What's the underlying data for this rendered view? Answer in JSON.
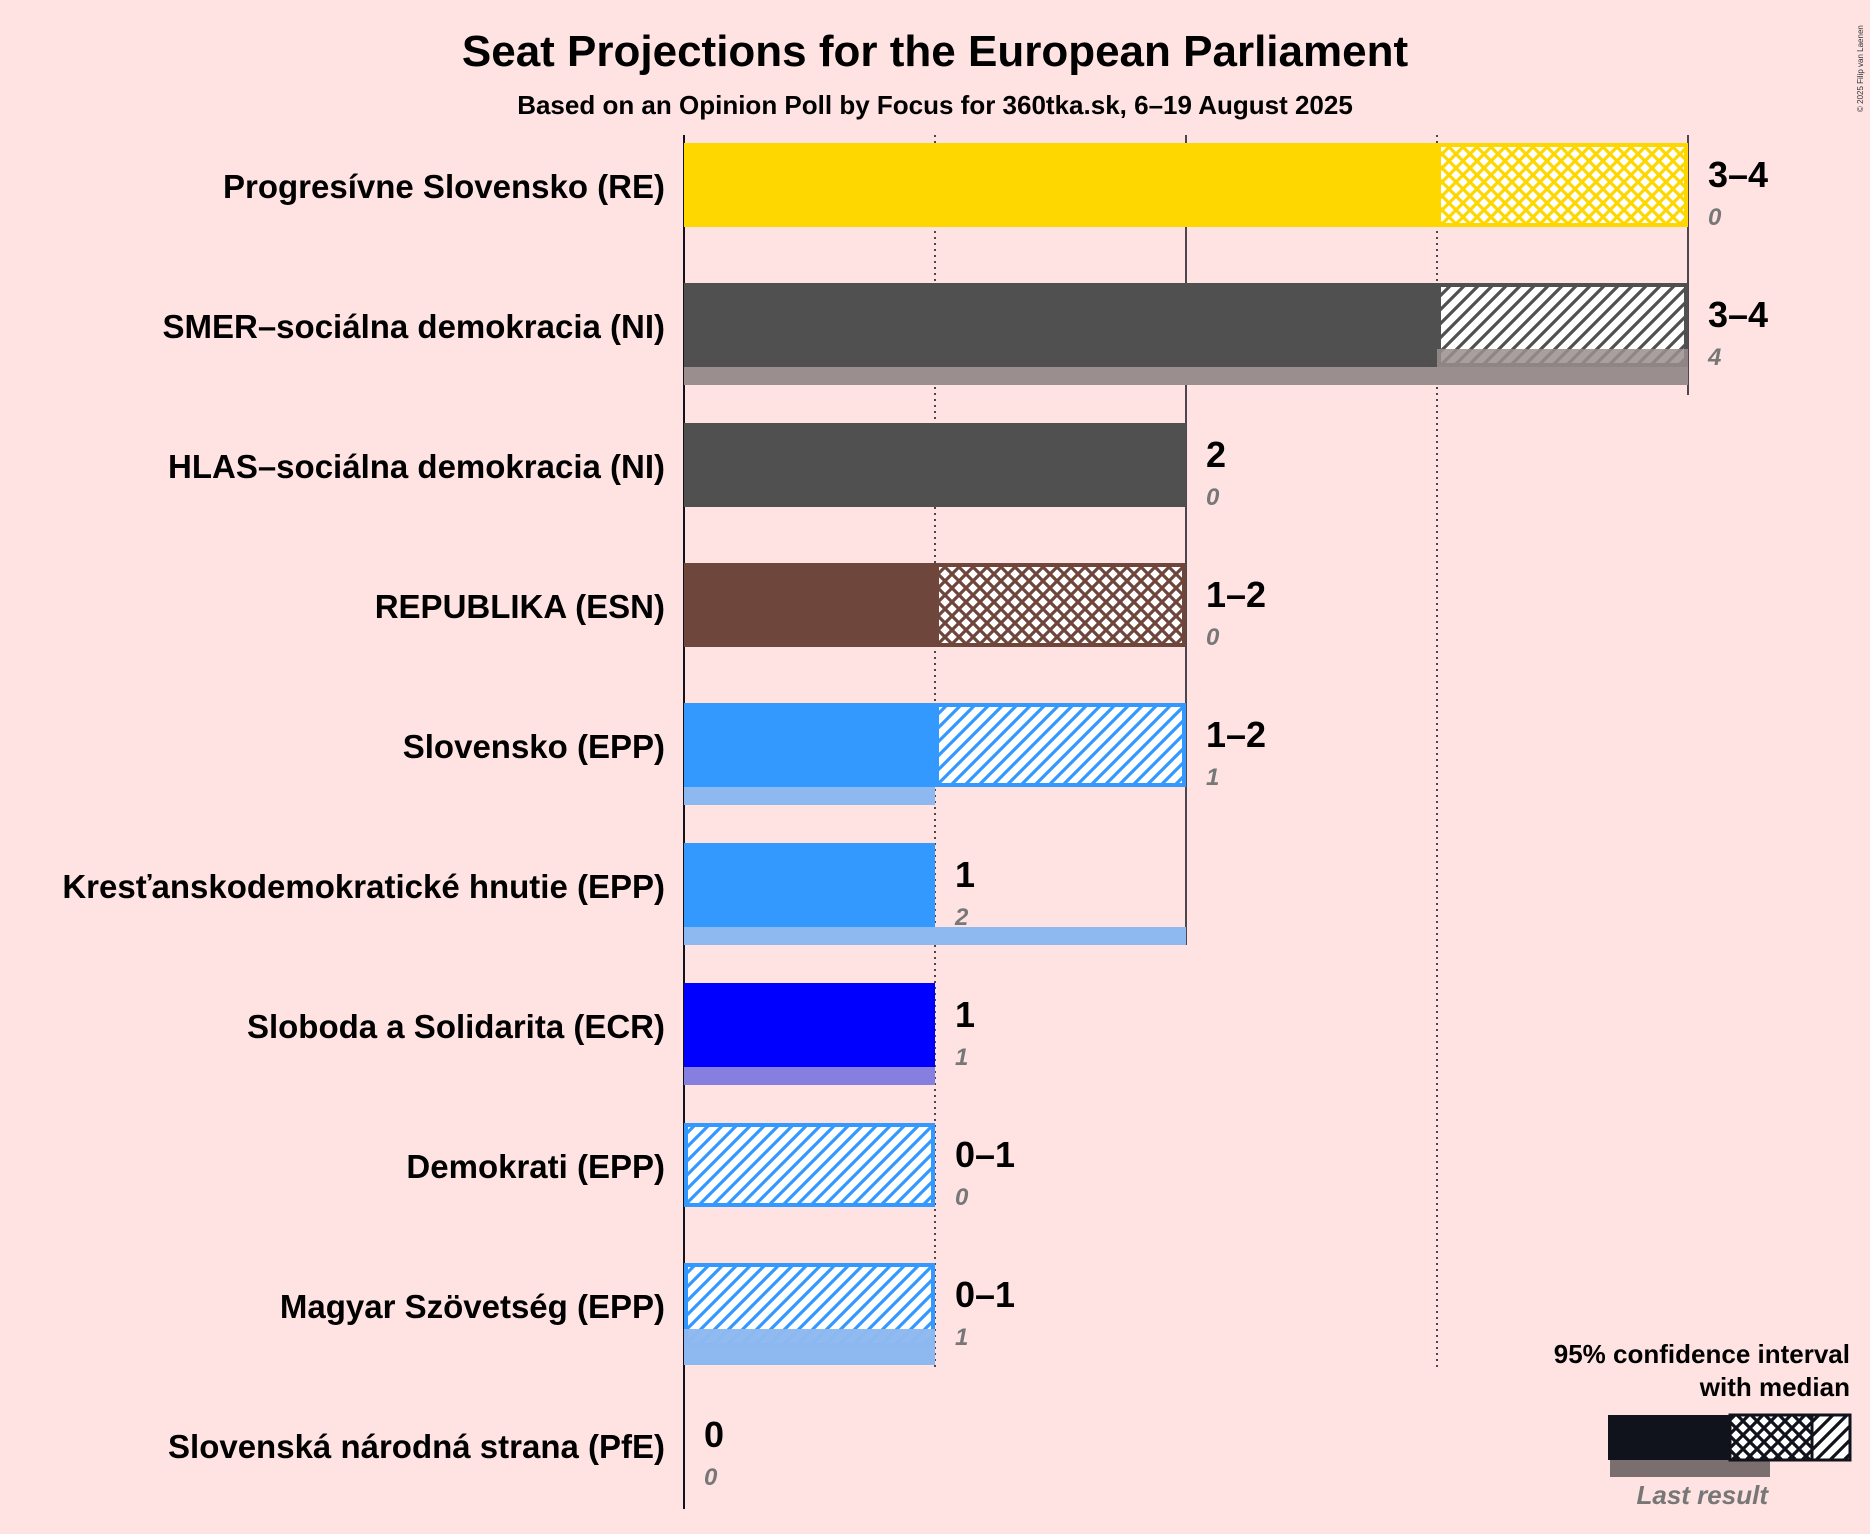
{
  "title": "Seat Projections for the European Parliament",
  "subtitle": "Based on an Opinion Poll by Focus for 360tka.sk, 6–19 August 2025",
  "copyright": "© 2025 Filip van Laenen",
  "legend": {
    "line1": "95% confidence interval",
    "line2": "with median",
    "last_result": "Last result"
  },
  "chart_data": {
    "type": "bar",
    "orientation": "horizontal",
    "title": "Seat Projections for the European Parliament",
    "subtitle": "Based on an Opinion Poll by Focus for 360tka.sk, 6–19 August 2025",
    "xlim": [
      0,
      4
    ],
    "gridlines_solid": [
      0,
      2,
      4
    ],
    "gridlines_dotted": [
      1,
      3
    ],
    "parties": [
      {
        "name": "Progresívne Slovensko (RE)",
        "low": 3,
        "median": 3,
        "high": 4,
        "last": 0,
        "label": "3–4",
        "last_label": "0",
        "color": "#FFD700",
        "last_color": "#F4C87E",
        "pattern": "cross"
      },
      {
        "name": "SMER–sociálna demokracia (NI)",
        "low": 3,
        "median": 3,
        "high": 4,
        "last": 4,
        "label": "3–4",
        "last_label": "4",
        "color": "#505050",
        "last_color": "#9A8E8E",
        "pattern": "diag"
      },
      {
        "name": "HLAS–sociálna demokracia (NI)",
        "low": 2,
        "median": 2,
        "high": 2,
        "last": 0,
        "label": "2",
        "last_label": "0",
        "color": "#505050",
        "last_color": "#9A8E8E",
        "pattern": "none"
      },
      {
        "name": "REPUBLIKA (ESN)",
        "low": 1,
        "median": 1,
        "high": 2,
        "last": 0,
        "label": "1–2",
        "last_label": "0",
        "color": "#6E463C",
        "last_color": "#A4857F",
        "pattern": "cross"
      },
      {
        "name": "Slovensko (EPP)",
        "low": 1,
        "median": 1,
        "high": 2,
        "last": 1,
        "label": "1–2",
        "last_label": "1",
        "color": "#3399FF",
        "last_color": "#8DB8F0",
        "pattern": "diag"
      },
      {
        "name": "Kresťanskodemokratické hnutie (EPP)",
        "low": 1,
        "median": 1,
        "high": 1,
        "last": 2,
        "label": "1",
        "last_label": "2",
        "color": "#3399FF",
        "last_color": "#8DB8F0",
        "pattern": "none"
      },
      {
        "name": "Sloboda a Solidarita (ECR)",
        "low": 1,
        "median": 1,
        "high": 1,
        "last": 1,
        "label": "1",
        "last_label": "1",
        "color": "#0000FF",
        "last_color": "#877FE0",
        "pattern": "none"
      },
      {
        "name": "Demokrati (EPP)",
        "low": 0,
        "median": 0,
        "high": 1,
        "last": 0,
        "label": "0–1",
        "last_label": "0",
        "color": "#3399FF",
        "last_color": "#8DB8F0",
        "pattern": "diag"
      },
      {
        "name": "Magyar Szövetség (EPP)",
        "low": 0,
        "median": 0,
        "high": 1,
        "last": 1,
        "label": "0–1",
        "last_label": "1",
        "color": "#3399FF",
        "last_color": "#8DB8F0",
        "pattern": "diag"
      },
      {
        "name": "Slovenská národná strana (PfE)",
        "low": 0,
        "median": 0,
        "high": 0,
        "last": 0,
        "label": "0",
        "last_label": "0",
        "color": "#505050",
        "last_color": "#9A8E8E",
        "pattern": "none"
      }
    ]
  }
}
